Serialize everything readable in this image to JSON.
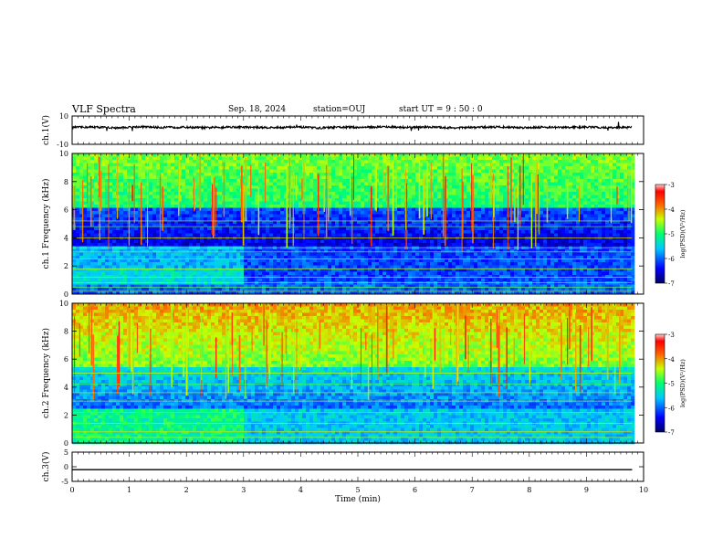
{
  "header": {
    "title": "VLF Spectra",
    "date": "Sep. 18, 2024",
    "station": "station=OUJ",
    "start_ut": "start UT =  9 : 50 : 0"
  },
  "chart_data": [
    {
      "type": "line",
      "ylabel": "ch.1(V)",
      "ylim": [
        -10,
        10
      ],
      "y_ticks": [
        "10",
        "-10"
      ],
      "series": [
        {
          "values": [
            2.0,
            2.2,
            1.6,
            2.4,
            1.9,
            2.1,
            1.7,
            2.3,
            2.0,
            1.8,
            2.2,
            1.5,
            2.1,
            2.0,
            2.4,
            1.9,
            2.2,
            1.6,
            2.0,
            2.3,
            1.8,
            2.1,
            1.9,
            2.2,
            1.7,
            2.0
          ]
        }
      ]
    },
    {
      "type": "heatmap",
      "ylabel": "ch.1 Frequency (kHz)",
      "ylim": [
        0,
        10
      ],
      "y_ticks": [
        "0",
        "2",
        "4",
        "6",
        "8",
        "10"
      ],
      "colorbar": {
        "label": "log(PSD)(V²/Hz)",
        "range": [
          -7,
          -3
        ],
        "ticks": [
          "-3",
          "-4",
          "-5",
          "-6",
          "-7"
        ]
      }
    },
    {
      "type": "heatmap",
      "ylabel": "ch.2 Frequency (kHz)",
      "ylim": [
        0,
        10
      ],
      "y_ticks": [
        "0",
        "2",
        "4",
        "6",
        "8",
        "10"
      ],
      "colorbar": {
        "label": "log(PSD)(V²/Hz)",
        "range": [
          -7,
          -3
        ],
        "ticks": [
          "-3",
          "-4",
          "-5",
          "-6",
          "-7"
        ]
      }
    },
    {
      "type": "line",
      "ylabel": "ch.3(V)",
      "ylim": [
        -5,
        5
      ],
      "y_ticks": [
        "5",
        "0",
        "-5"
      ],
      "series": [
        {
          "values": [
            -1.0,
            -1.0
          ]
        }
      ]
    }
  ],
  "xaxis": {
    "label": "Time (min)",
    "xlim": [
      0,
      10
    ],
    "ticks": [
      "0",
      "1",
      "2",
      "3",
      "4",
      "5",
      "6",
      "7",
      "8",
      "9",
      "10"
    ]
  }
}
